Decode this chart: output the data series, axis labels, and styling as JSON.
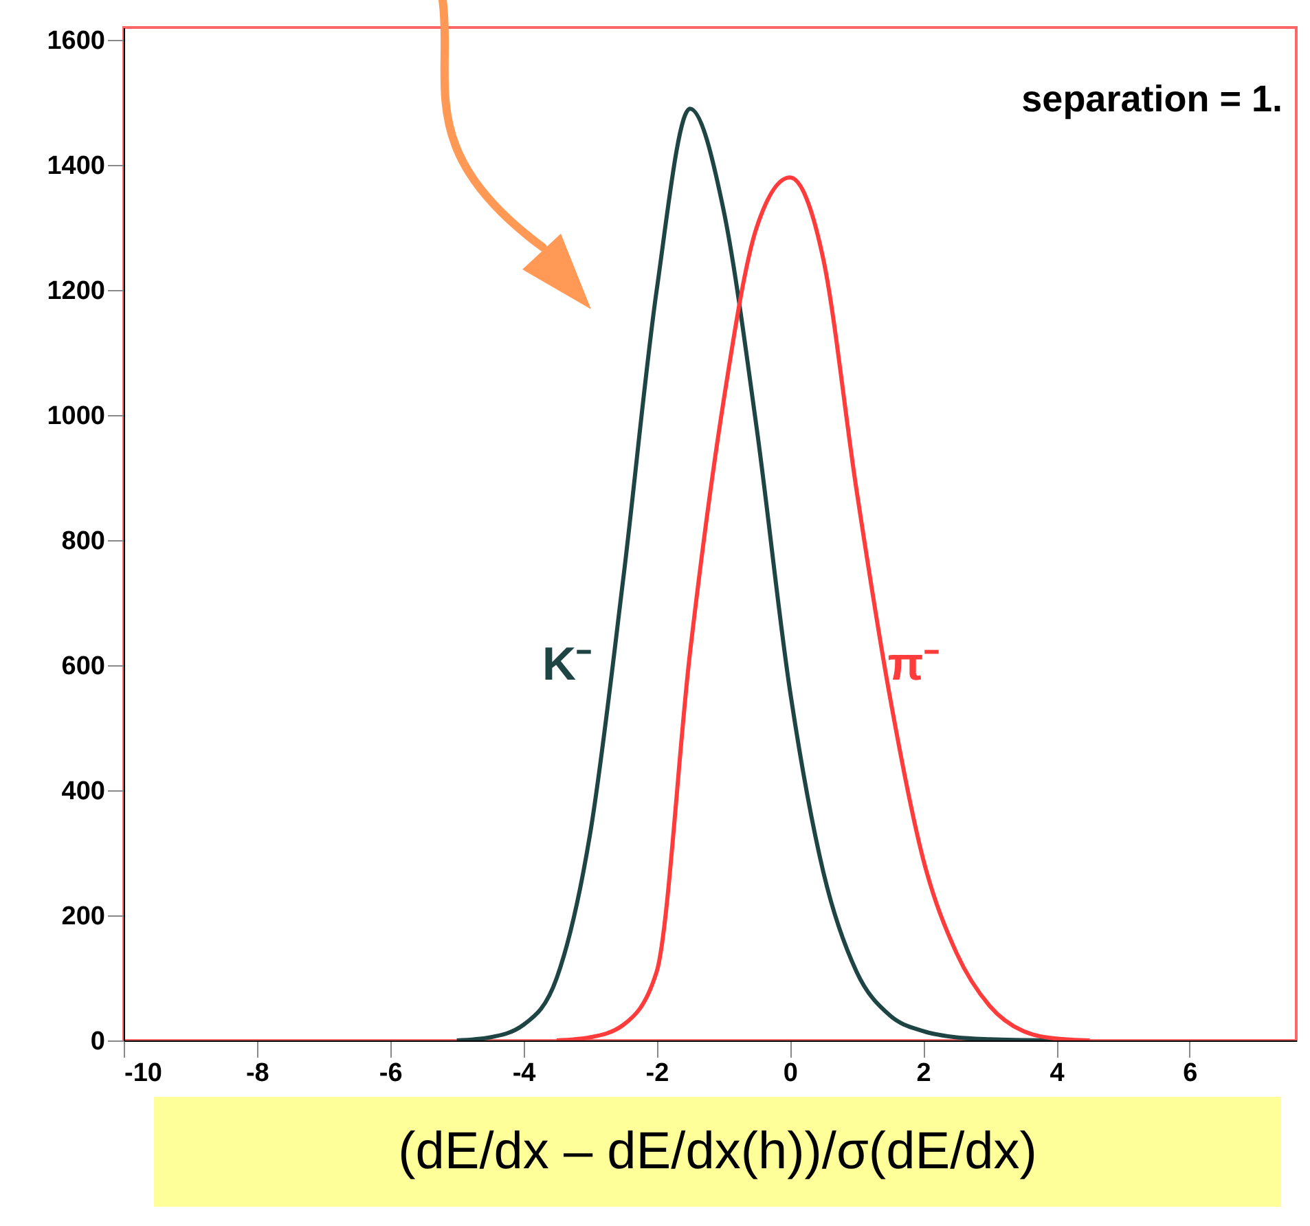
{
  "chart_data": {
    "type": "line",
    "xlabel": "(dE/dx – dE/dx(h))/σ(dE/dx)",
    "annotations": [
      "separation = 1."
    ],
    "xlim": [
      -10,
      7.6
    ],
    "xticks": [
      -10,
      -8,
      -6,
      -4,
      -2,
      0,
      2,
      4,
      6
    ],
    "ylim": [
      0,
      1620
    ],
    "yticks": [
      0,
      200,
      400,
      600,
      800,
      1000,
      1200,
      1400,
      1600
    ],
    "grid": false,
    "legend": false,
    "series": [
      {
        "name": "K⁻",
        "color": "#1e4444",
        "x": [
          -5,
          -4.5,
          -4,
          -3.5,
          -3,
          -2.5,
          -2,
          -1.5,
          -1,
          -0.5,
          0,
          0.5,
          1,
          1.5,
          2,
          2.5,
          3,
          4
        ],
        "values": [
          0,
          5,
          25,
          100,
          330,
          740,
          1200,
          1490,
          1330,
          980,
          560,
          270,
          110,
          40,
          15,
          5,
          2,
          0
        ]
      },
      {
        "name": "π⁻",
        "color": "#ff3b3b",
        "x": [
          -3.5,
          -3,
          -2.5,
          -2,
          -1.5,
          -1,
          -0.5,
          0,
          0.5,
          1,
          1.5,
          2,
          2.5,
          3,
          3.5,
          4,
          4.5
        ],
        "values": [
          0,
          5,
          25,
          110,
          620,
          1020,
          1300,
          1380,
          1250,
          880,
          550,
          290,
          140,
          55,
          15,
          3,
          0
        ]
      }
    ]
  }
}
